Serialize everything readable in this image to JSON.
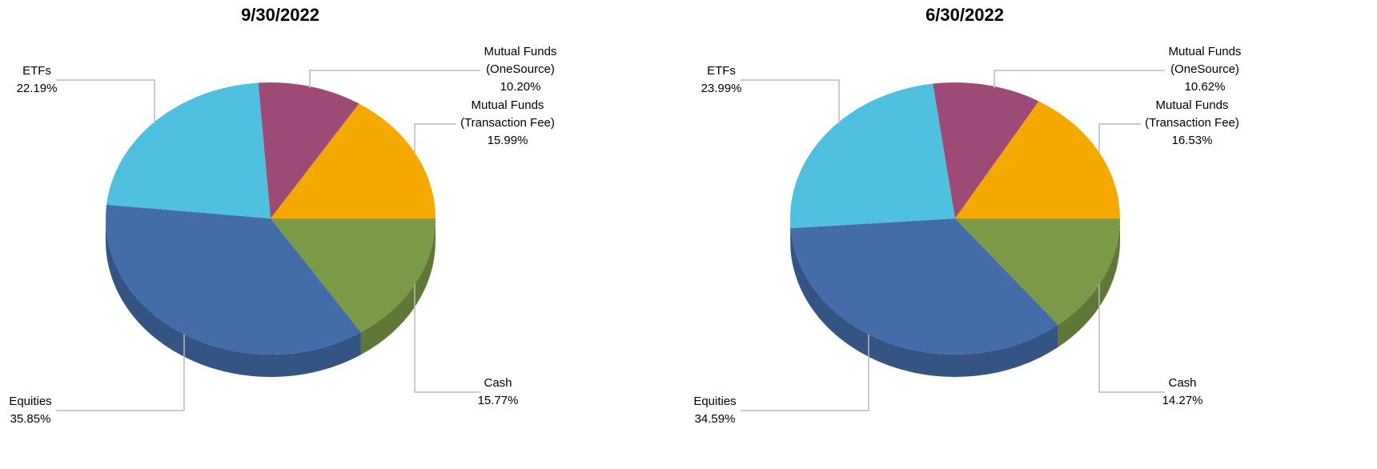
{
  "chart_data": [
    {
      "type": "pie3d",
      "title": "9/30/2022",
      "categories": [
        "Cash",
        "Equities",
        "ETFs",
        "Mutual Funds (OneSource)",
        "Mutual Funds (Transaction Fee)"
      ],
      "values": [
        15.77,
        35.85,
        22.19,
        10.2,
        15.99
      ],
      "value_labels": [
        "15.77%",
        "35.85%",
        "22.19%",
        "10.20%",
        "15.99%"
      ],
      "colors": [
        "#7a9a48",
        "#436ca8",
        "#4fc0e0",
        "#9e4a76",
        "#f5a800"
      ]
    },
    {
      "type": "pie3d",
      "title": "6/30/2022",
      "categories": [
        "Cash",
        "Equities",
        "ETFs",
        "Mutual Funds (OneSource)",
        "Mutual Funds (Transaction Fee)"
      ],
      "values": [
        14.27,
        34.59,
        23.99,
        10.62,
        16.53
      ],
      "value_labels": [
        "14.27%",
        "34.59%",
        "23.99%",
        "10.62%",
        "16.53%"
      ],
      "colors": [
        "#7a9a48",
        "#436ca8",
        "#4fc0e0",
        "#9e4a76",
        "#f5a800"
      ]
    }
  ]
}
